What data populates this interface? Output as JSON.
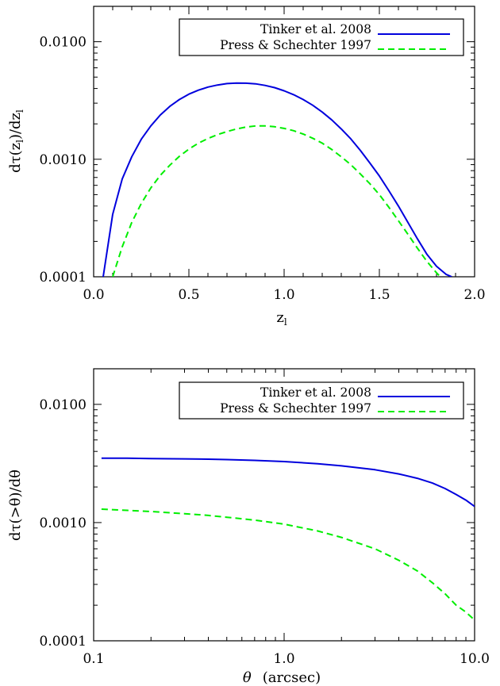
{
  "chart_data": [
    {
      "type": "line",
      "xlabel": "z",
      "xlabel_sub": "l",
      "ylabel": "dτ(z",
      "ylabel_sub": "l",
      "ylabel_mid": ")/dz",
      "ylabel_sub2": "l",
      "y_scale": "log",
      "xlim": [
        0.0,
        2.0
      ],
      "ylim": [
        0.0001,
        0.02
      ],
      "x_ticks": [
        {
          "value": 0.0,
          "label": "0.0"
        },
        {
          "value": 0.5,
          "label": "0.5"
        },
        {
          "value": 1.0,
          "label": "1.0"
        },
        {
          "value": 1.5,
          "label": "1.5"
        },
        {
          "value": 2.0,
          "label": "2.0"
        }
      ],
      "y_ticks": [
        {
          "value": 0.0001,
          "label": "0.0001"
        },
        {
          "value": 0.001,
          "label": "0.0010"
        },
        {
          "value": 0.01,
          "label": "0.0100"
        }
      ],
      "legend_position": "top-right",
      "series": [
        {
          "name": "Tinker et al. 2008",
          "color": "#0000dd",
          "style": "solid",
          "x": [
            0.05,
            0.1,
            0.15,
            0.2,
            0.25,
            0.3,
            0.35,
            0.4,
            0.45,
            0.5,
            0.55,
            0.6,
            0.65,
            0.7,
            0.75,
            0.8,
            0.85,
            0.9,
            0.95,
            1.0,
            1.05,
            1.1,
            1.15,
            1.2,
            1.25,
            1.3,
            1.35,
            1.4,
            1.45,
            1.5,
            1.55,
            1.6,
            1.65,
            1.7,
            1.75,
            1.8,
            1.85,
            1.88
          ],
          "y": [
            0.0001,
            0.00034,
            0.00068,
            0.00105,
            0.00148,
            0.00192,
            0.00238,
            0.00282,
            0.00322,
            0.00358,
            0.00387,
            0.00411,
            0.00428,
            0.0044,
            0.00445,
            0.00444,
            0.00438,
            0.00425,
            0.00407,
            0.00382,
            0.00354,
            0.00322,
            0.00288,
            0.00252,
            0.00216,
            0.00181,
            0.00149,
            0.00119,
            0.00093,
            0.00072,
            0.00054,
            0.0004,
            0.00029,
            0.00021,
            0.000155,
            0.000123,
            0.000105,
            0.0001
          ]
        },
        {
          "name": "Press & Schechter 1997",
          "color": "#00ee00",
          "style": "dashed",
          "x": [
            0.1,
            0.15,
            0.2,
            0.25,
            0.3,
            0.35,
            0.4,
            0.45,
            0.5,
            0.55,
            0.6,
            0.65,
            0.7,
            0.75,
            0.8,
            0.85,
            0.9,
            0.95,
            1.0,
            1.05,
            1.1,
            1.15,
            1.2,
            1.25,
            1.3,
            1.35,
            1.4,
            1.45,
            1.5,
            1.55,
            1.6,
            1.65,
            1.7,
            1.75,
            1.8,
            1.82
          ],
          "y": [
            0.0001,
            0.00018,
            0.00029,
            0.00042,
            0.00057,
            0.00073,
            0.00089,
            0.00106,
            0.00122,
            0.00137,
            0.0015,
            0.00162,
            0.00172,
            0.00181,
            0.00188,
            0.00192,
            0.00192,
            0.00189,
            0.00183,
            0.00175,
            0.00164,
            0.00151,
            0.00137,
            0.00121,
            0.00105,
            0.0009,
            0.00075,
            0.00062,
            0.0005,
            0.00039,
            0.0003,
            0.00023,
            0.000175,
            0.000135,
            0.000108,
            0.0001
          ]
        }
      ]
    },
    {
      "type": "line",
      "xlabel": "θ",
      "xlabel_unit": "(arcsec)",
      "ylabel": "dτ(>θ)/dθ",
      "x_scale": "log",
      "y_scale": "log",
      "xlim": [
        0.1,
        10.0
      ],
      "ylim": [
        0.0001,
        0.02
      ],
      "x_ticks": [
        {
          "value": 0.1,
          "label": "0.1"
        },
        {
          "value": 1.0,
          "label": "1.0"
        },
        {
          "value": 10.0,
          "label": "10.0"
        }
      ],
      "y_ticks": [
        {
          "value": 0.0001,
          "label": "0.0001"
        },
        {
          "value": 0.001,
          "label": "0.0010"
        },
        {
          "value": 0.01,
          "label": "0.0100"
        }
      ],
      "legend_position": "top-right",
      "series": [
        {
          "name": "Tinker et al. 2008",
          "color": "#0000dd",
          "style": "solid",
          "x": [
            0.11,
            0.15,
            0.2,
            0.3,
            0.4,
            0.5,
            0.7,
            1.0,
            1.5,
            2.0,
            3.0,
            4.0,
            5.0,
            6.0,
            7.0,
            8.0,
            9.0,
            10.0
          ],
          "y": [
            0.0035,
            0.0035,
            0.00348,
            0.00346,
            0.00344,
            0.00341,
            0.00336,
            0.00328,
            0.00315,
            0.00302,
            0.0028,
            0.00258,
            0.00237,
            0.00216,
            0.00194,
            0.00173,
            0.00155,
            0.00137
          ]
        },
        {
          "name": "Press & Schechter 1997",
          "color": "#00ee00",
          "style": "dashed",
          "x": [
            0.11,
            0.15,
            0.2,
            0.3,
            0.4,
            0.5,
            0.7,
            1.0,
            1.5,
            2.0,
            3.0,
            4.0,
            5.0,
            6.0,
            7.0,
            8.0,
            9.0,
            10.0
          ],
          "y": [
            0.0013,
            0.00127,
            0.00124,
            0.00119,
            0.00115,
            0.00111,
            0.00105,
            0.00097,
            0.00085,
            0.00075,
            0.0006,
            0.00048,
            0.00039,
            0.00031,
            0.00025,
            0.0002,
            0.000175,
            0.00015
          ]
        }
      ]
    }
  ]
}
